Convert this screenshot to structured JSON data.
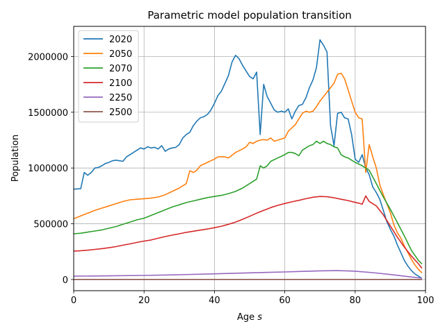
{
  "chart_data": {
    "type": "line",
    "title": "Parametric model population transition",
    "xlabel_main": "Age ",
    "xlabel_symbol": "s",
    "ylabel": "Population",
    "xlim": [
      0,
      100
    ],
    "ylim": [
      -100000,
      2270000
    ],
    "x_ticks": [
      0,
      20,
      40,
      60,
      80,
      100
    ],
    "y_ticks": [
      0,
      500000,
      1000000,
      1500000,
      2000000
    ],
    "grid": true,
    "legend_position": "top-left",
    "series": [
      {
        "name": "2020",
        "color": "#1f77b4",
        "x": [
          0,
          2,
          3,
          4,
          5,
          6,
          7,
          8,
          9,
          10,
          11,
          12,
          13,
          14,
          15,
          16,
          17,
          18,
          19,
          20,
          21,
          22,
          23,
          24,
          25,
          26,
          27,
          28,
          29,
          30,
          31,
          32,
          33,
          34,
          35,
          36,
          37,
          38,
          39,
          40,
          41,
          42,
          43,
          44,
          45,
          46,
          47,
          48,
          49,
          50,
          51,
          52,
          53,
          54,
          55,
          56,
          57,
          58,
          59,
          60,
          61,
          62,
          63,
          64,
          65,
          66,
          67,
          68,
          69,
          70,
          71,
          72,
          73,
          74,
          75,
          76,
          77,
          78,
          79,
          80,
          81,
          82,
          83,
          84,
          85,
          86,
          87,
          88,
          89,
          90,
          91,
          92,
          93,
          94,
          95,
          96,
          97,
          98,
          99
        ],
        "y": [
          810000,
          815000,
          960000,
          935000,
          960000,
          1000000,
          1005000,
          1020000,
          1040000,
          1050000,
          1065000,
          1070000,
          1065000,
          1060000,
          1100000,
          1120000,
          1140000,
          1160000,
          1180000,
          1170000,
          1190000,
          1180000,
          1185000,
          1170000,
          1200000,
          1150000,
          1170000,
          1180000,
          1185000,
          1210000,
          1270000,
          1300000,
          1320000,
          1380000,
          1420000,
          1450000,
          1460000,
          1480000,
          1520000,
          1580000,
          1650000,
          1690000,
          1760000,
          1830000,
          1950000,
          2010000,
          1980000,
          1920000,
          1870000,
          1820000,
          1800000,
          1860000,
          1300000,
          1750000,
          1640000,
          1580000,
          1520000,
          1500000,
          1510000,
          1500000,
          1530000,
          1440000,
          1510000,
          1560000,
          1570000,
          1630000,
          1720000,
          1790000,
          1900000,
          2150000,
          2100000,
          2040000,
          1380000,
          1200000,
          1490000,
          1500000,
          1450000,
          1440000,
          1300000,
          1080000,
          1050000,
          1120000,
          1000000,
          940000,
          830000,
          780000,
          720000,
          620000,
          520000,
          450000,
          390000,
          310000,
          240000,
          170000,
          120000,
          80000,
          50000,
          30000,
          10000
        ]
      },
      {
        "name": "2050",
        "color": "#ff7f0e",
        "x": [
          0,
          2,
          4,
          6,
          8,
          10,
          12,
          14,
          16,
          18,
          20,
          22,
          24,
          26,
          28,
          30,
          32,
          33,
          34,
          35,
          36,
          38,
          40,
          41,
          42,
          43,
          44,
          46,
          48,
          49,
          50,
          51,
          52,
          53,
          54,
          55,
          56,
          57,
          58,
          59,
          60,
          61,
          62,
          63,
          64,
          65,
          66,
          67,
          68,
          69,
          70,
          71,
          72,
          73,
          74,
          75,
          76,
          77,
          78,
          79,
          80,
          81,
          82,
          83,
          84,
          85,
          86,
          87,
          88,
          89,
          90,
          91,
          92,
          93,
          94,
          95,
          96,
          97,
          98,
          99
        ],
        "y": [
          545000,
          570000,
          595000,
          620000,
          640000,
          660000,
          680000,
          700000,
          715000,
          720000,
          725000,
          730000,
          740000,
          760000,
          790000,
          820000,
          860000,
          975000,
          960000,
          980000,
          1020000,
          1050000,
          1080000,
          1100000,
          1100000,
          1100000,
          1090000,
          1140000,
          1170000,
          1190000,
          1230000,
          1220000,
          1240000,
          1250000,
          1255000,
          1250000,
          1270000,
          1240000,
          1250000,
          1260000,
          1270000,
          1330000,
          1360000,
          1390000,
          1440000,
          1490000,
          1510000,
          1500000,
          1510000,
          1550000,
          1600000,
          1640000,
          1680000,
          1720000,
          1760000,
          1840000,
          1850000,
          1800000,
          1700000,
          1600000,
          1500000,
          1450000,
          1440000,
          960000,
          1210000,
          1100000,
          1000000,
          850000,
          760000,
          680000,
          600000,
          490000,
          420000,
          370000,
          300000,
          240000,
          180000,
          130000,
          90000,
          60000
        ]
      },
      {
        "name": "2070",
        "color": "#2ca02c",
        "x": [
          0,
          2,
          4,
          6,
          8,
          10,
          12,
          14,
          16,
          18,
          20,
          22,
          24,
          26,
          28,
          30,
          32,
          34,
          36,
          38,
          40,
          42,
          44,
          46,
          48,
          50,
          52,
          53,
          54,
          55,
          56,
          58,
          60,
          61,
          62,
          63,
          64,
          65,
          66,
          67,
          68,
          69,
          70,
          71,
          72,
          73,
          74,
          75,
          76,
          77,
          78,
          79,
          80,
          82,
          84,
          86,
          88,
          90,
          92,
          94,
          96,
          98,
          99
        ],
        "y": [
          410000,
          415000,
          425000,
          435000,
          445000,
          460000,
          475000,
          495000,
          515000,
          535000,
          550000,
          575000,
          600000,
          625000,
          650000,
          670000,
          690000,
          705000,
          720000,
          735000,
          745000,
          755000,
          770000,
          790000,
          820000,
          860000,
          900000,
          1020000,
          1000000,
          1020000,
          1060000,
          1090000,
          1120000,
          1140000,
          1140000,
          1130000,
          1110000,
          1160000,
          1180000,
          1200000,
          1210000,
          1240000,
          1220000,
          1240000,
          1220000,
          1210000,
          1190000,
          1180000,
          1120000,
          1100000,
          1090000,
          1070000,
          1050000,
          1020000,
          980000,
          860000,
          740000,
          630000,
          510000,
          390000,
          260000,
          170000,
          140000
        ]
      },
      {
        "name": "2100",
        "color": "#d62728",
        "x": [
          0,
          2,
          4,
          6,
          8,
          10,
          12,
          14,
          16,
          18,
          20,
          22,
          24,
          26,
          28,
          30,
          32,
          34,
          36,
          38,
          40,
          42,
          44,
          46,
          48,
          50,
          52,
          54,
          56,
          58,
          60,
          62,
          64,
          66,
          68,
          70,
          72,
          74,
          76,
          78,
          80,
          81,
          82,
          83,
          84,
          85,
          86,
          88,
          90,
          92,
          94,
          96,
          98,
          99
        ],
        "y": [
          255000,
          258000,
          263000,
          270000,
          277000,
          285000,
          295000,
          308000,
          320000,
          333000,
          345000,
          355000,
          370000,
          385000,
          398000,
          410000,
          423000,
          433000,
          443000,
          453000,
          465000,
          478000,
          495000,
          515000,
          540000,
          567000,
          595000,
          620000,
          645000,
          665000,
          682000,
          697000,
          710000,
          725000,
          738000,
          745000,
          742000,
          733000,
          720000,
          708000,
          692000,
          685000,
          675000,
          750000,
          700000,
          680000,
          660000,
          580000,
          480000,
          380000,
          290000,
          210000,
          140000,
          100000
        ]
      },
      {
        "name": "2250",
        "color": "#9467bd",
        "x": [
          0,
          10,
          20,
          30,
          40,
          50,
          60,
          65,
          70,
          75,
          80,
          85,
          90,
          95,
          99
        ],
        "y": [
          30000,
          33000,
          37000,
          43000,
          51000,
          60000,
          68000,
          73000,
          78000,
          80000,
          75000,
          62000,
          45000,
          26000,
          12000
        ]
      },
      {
        "name": "2500",
        "color": "#8c564b",
        "x": [
          0,
          20,
          40,
          60,
          80,
          99
        ],
        "y": [
          800,
          850,
          900,
          950,
          900,
          600
        ]
      }
    ]
  }
}
